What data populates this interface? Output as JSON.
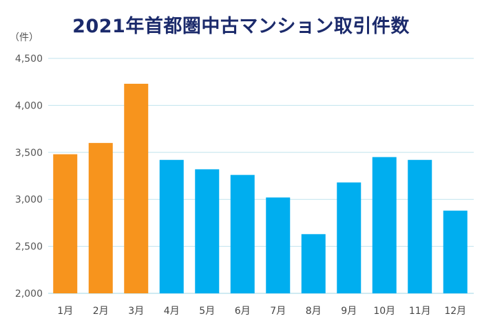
{
  "chart_data": {
    "type": "bar",
    "title": "2021年首都圏中古マンション取引件数",
    "unit_label": "（件）",
    "categories": [
      "1月",
      "2月",
      "3月",
      "4月",
      "5月",
      "6月",
      "7月",
      "8月",
      "9月",
      "10月",
      "11月",
      "12月"
    ],
    "values": [
      3480,
      3600,
      4230,
      3420,
      3320,
      3260,
      3020,
      2630,
      3180,
      3450,
      3420,
      2880
    ],
    "bar_colors": [
      "#f7941d",
      "#f7941d",
      "#f7941d",
      "#00aeef",
      "#00aeef",
      "#00aeef",
      "#00aeef",
      "#00aeef",
      "#00aeef",
      "#00aeef",
      "#00aeef",
      "#00aeef"
    ],
    "ylim": [
      2000,
      4500
    ],
    "yticks": [
      "2,000",
      "2,500",
      "3,000",
      "3,500",
      "4,000",
      "4,500"
    ],
    "ytick_values": [
      2000,
      2500,
      3000,
      3500,
      4000,
      4500
    ],
    "grid": true,
    "gridline_color": "#bfe3ee"
  }
}
